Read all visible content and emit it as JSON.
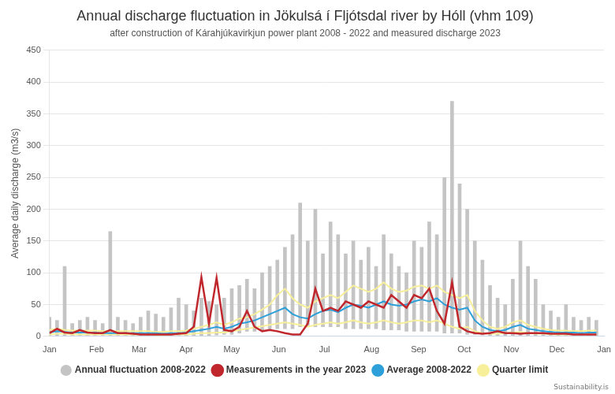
{
  "chart_data": {
    "type": "line",
    "title": "Annual discharge fluctuation in Jökulsá í Fljótsdal river by Hóll (vhm 109)",
    "subtitle": "after construction of Kárahjúkavirkjun power plant 2008 - 2022 and measured discharge 2023",
    "ylabel": "Average daily discharge (m3/s)",
    "source": "Sustainability.is",
    "x": [
      0,
      5,
      10,
      15,
      20,
      25,
      30,
      35,
      40,
      45,
      50,
      55,
      60,
      65,
      70,
      75,
      80,
      85,
      90,
      95,
      100,
      105,
      110,
      115,
      120,
      125,
      130,
      135,
      140,
      145,
      150,
      155,
      160,
      165,
      170,
      175,
      180,
      185,
      190,
      195,
      200,
      205,
      210,
      215,
      220,
      225,
      230,
      235,
      240,
      245,
      250,
      255,
      260,
      265,
      270,
      275,
      280,
      285,
      290,
      295,
      300,
      305,
      310,
      315,
      320,
      325,
      330,
      335,
      340,
      345,
      350,
      355,
      360
    ],
    "xlim": [
      0,
      365
    ],
    "xticks": [
      {
        "value": 0,
        "label": "Jan"
      },
      {
        "value": 31,
        "label": "Feb"
      },
      {
        "value": 59,
        "label": "Mar"
      },
      {
        "value": 90,
        "label": "Apr"
      },
      {
        "value": 120,
        "label": "May"
      },
      {
        "value": 151,
        "label": "Jun"
      },
      {
        "value": 181,
        "label": "Jul"
      },
      {
        "value": 212,
        "label": "Aug"
      },
      {
        "value": 243,
        "label": "Sep"
      },
      {
        "value": 273,
        "label": "Oct"
      },
      {
        "value": 304,
        "label": "Nov"
      },
      {
        "value": 334,
        "label": "Dec"
      },
      {
        "value": 365,
        "label": "Jan"
      }
    ],
    "ylim": [
      0,
      450
    ],
    "yticks": [
      0,
      50,
      100,
      150,
      200,
      250,
      300,
      350,
      400,
      450
    ],
    "grid": true,
    "legend": "bottom",
    "series": [
      {
        "name": "Annual fluctuation 2008-2022",
        "type": "bar",
        "color": "#c4c4c4",
        "marker": "circle",
        "values": [
          [
            1,
            30
          ],
          [
            1,
            25
          ],
          [
            1,
            110
          ],
          [
            1,
            20
          ],
          [
            1,
            25
          ],
          [
            1,
            30
          ],
          [
            1,
            25
          ],
          [
            1,
            20
          ],
          [
            1,
            165
          ],
          [
            1,
            30
          ],
          [
            1,
            25
          ],
          [
            1,
            20
          ],
          [
            1,
            30
          ],
          [
            1,
            40
          ],
          [
            1,
            35
          ],
          [
            1,
            30
          ],
          [
            1,
            45
          ],
          [
            1,
            60
          ],
          [
            1,
            50
          ],
          [
            1,
            40
          ],
          [
            1,
            60
          ],
          [
            1,
            55
          ],
          [
            2,
            50
          ],
          [
            3,
            60
          ],
          [
            3,
            75
          ],
          [
            5,
            80
          ],
          [
            8,
            90
          ],
          [
            8,
            75
          ],
          [
            10,
            100
          ],
          [
            10,
            110
          ],
          [
            12,
            120
          ],
          [
            12,
            140
          ],
          [
            12,
            160
          ],
          [
            15,
            210
          ],
          [
            15,
            150
          ],
          [
            15,
            200
          ],
          [
            15,
            130
          ],
          [
            15,
            180
          ],
          [
            15,
            160
          ],
          [
            12,
            130
          ],
          [
            12,
            150
          ],
          [
            12,
            120
          ],
          [
            12,
            140
          ],
          [
            12,
            110
          ],
          [
            10,
            160
          ],
          [
            10,
            130
          ],
          [
            10,
            110
          ],
          [
            8,
            100
          ],
          [
            8,
            150
          ],
          [
            8,
            140
          ],
          [
            8,
            180
          ],
          [
            8,
            160
          ],
          [
            5,
            250
          ],
          [
            5,
            370
          ],
          [
            5,
            240
          ],
          [
            3,
            200
          ],
          [
            3,
            150
          ],
          [
            2,
            120
          ],
          [
            1,
            80
          ],
          [
            1,
            60
          ],
          [
            1,
            50
          ],
          [
            1,
            90
          ],
          [
            1,
            150
          ],
          [
            1,
            110
          ],
          [
            1,
            90
          ],
          [
            1,
            50
          ],
          [
            1,
            40
          ],
          [
            1,
            30
          ],
          [
            1,
            50
          ],
          [
            1,
            30
          ],
          [
            1,
            25
          ],
          [
            1,
            30
          ],
          [
            1,
            25
          ]
        ]
      },
      {
        "name": "Measurements in the year 2023",
        "type": "line",
        "color": "#c0272d",
        "marker": "circle",
        "values": [
          5,
          12,
          6,
          5,
          10,
          6,
          5,
          5,
          10,
          5,
          5,
          4,
          3,
          3,
          3,
          3,
          3,
          4,
          5,
          15,
          93,
          20,
          92,
          10,
          8,
          15,
          40,
          15,
          8,
          10,
          8,
          5,
          3,
          3,
          20,
          75,
          40,
          45,
          40,
          55,
          50,
          45,
          55,
          50,
          45,
          65,
          55,
          45,
          65,
          60,
          75,
          40,
          20,
          85,
          15,
          8,
          5,
          4,
          5,
          8,
          5,
          5,
          4,
          5,
          5,
          5,
          4,
          4,
          4,
          3,
          3,
          3,
          3
        ]
      },
      {
        "name": "Average 2008-2022",
        "type": "line",
        "color": "#2d9fd9",
        "marker": "circle",
        "values": [
          6,
          8,
          7,
          6,
          6,
          6,
          6,
          5,
          5,
          5,
          5,
          5,
          5,
          5,
          5,
          4,
          5,
          5,
          6,
          8,
          10,
          12,
          15,
          12,
          15,
          20,
          22,
          25,
          30,
          35,
          40,
          45,
          35,
          30,
          28,
          35,
          40,
          42,
          38,
          45,
          50,
          48,
          45,
          50,
          55,
          50,
          48,
          50,
          55,
          58,
          55,
          60,
          50,
          45,
          42,
          45,
          25,
          15,
          10,
          8,
          10,
          15,
          18,
          12,
          10,
          8,
          7,
          6,
          6,
          6,
          5,
          6,
          6
        ]
      },
      {
        "name": "Quarter limit",
        "type": "line",
        "color": "#f7ef9a",
        "marker": "circle",
        "values": [
          [
            3,
            10
          ],
          [
            4,
            12
          ],
          [
            4,
            10
          ],
          [
            3,
            9
          ],
          [
            3,
            9
          ],
          [
            3,
            9
          ],
          [
            3,
            9
          ],
          [
            3,
            8
          ],
          [
            3,
            8
          ],
          [
            3,
            8
          ],
          [
            3,
            8
          ],
          [
            3,
            8
          ],
          [
            3,
            8
          ],
          [
            3,
            8
          ],
          [
            2,
            7
          ],
          [
            2,
            7
          ],
          [
            3,
            8
          ],
          [
            3,
            8
          ],
          [
            3,
            9
          ],
          [
            4,
            12
          ],
          [
            5,
            15
          ],
          [
            5,
            18
          ],
          [
            6,
            22
          ],
          [
            6,
            18
          ],
          [
            8,
            22
          ],
          [
            10,
            28
          ],
          [
            12,
            30
          ],
          [
            14,
            35
          ],
          [
            16,
            42
          ],
          [
            18,
            50
          ],
          [
            20,
            65
          ],
          [
            22,
            75
          ],
          [
            20,
            60
          ],
          [
            18,
            50
          ],
          [
            15,
            45
          ],
          [
            18,
            55
          ],
          [
            20,
            60
          ],
          [
            22,
            65
          ],
          [
            20,
            60
          ],
          [
            22,
            70
          ],
          [
            25,
            80
          ],
          [
            22,
            75
          ],
          [
            20,
            70
          ],
          [
            22,
            75
          ],
          [
            25,
            85
          ],
          [
            22,
            75
          ],
          [
            20,
            70
          ],
          [
            22,
            72
          ],
          [
            25,
            78
          ],
          [
            25,
            80
          ],
          [
            22,
            75
          ],
          [
            25,
            80
          ],
          [
            20,
            70
          ],
          [
            15,
            65
          ],
          [
            12,
            60
          ],
          [
            15,
            65
          ],
          [
            8,
            40
          ],
          [
            5,
            25
          ],
          [
            4,
            15
          ],
          [
            4,
            12
          ],
          [
            5,
            15
          ],
          [
            6,
            22
          ],
          [
            7,
            25
          ],
          [
            5,
            18
          ],
          [
            4,
            15
          ],
          [
            4,
            12
          ],
          [
            3,
            10
          ],
          [
            3,
            9
          ],
          [
            3,
            9
          ],
          [
            3,
            8
          ],
          [
            3,
            8
          ],
          [
            3,
            9
          ],
          [
            3,
            9
          ]
        ]
      }
    ]
  }
}
